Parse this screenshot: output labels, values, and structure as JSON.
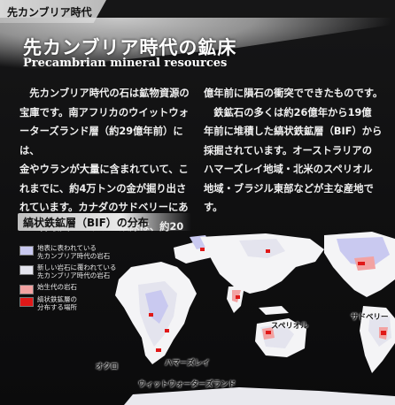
{
  "chapter_tab": "先カンブリア時代",
  "title": "先カンブリア時代の鉱床",
  "subtitle": "Precambrian mineral resources",
  "body_left": "　先カンブリア時代の石は鉱物資源の\n宝庫です。南アフリカのウイットウォ\nーターズランド層（約29億年前）には、\n金やウランが大量に含まれていて、こ\nれまでに、約4万トンの金が掘り出さ\nれています。カナダのサドベリーにあ\nる世界最大のニッケル鉱床は、約20",
  "body_right": "億年前に隕石の衝突でできたものです。\n　鉄鉱石の多くは約26億年から19億\n年前に堆積した縞状鉄鉱層（BIF）から\n採掘されています。オーストラリアの\nハマーズレイ地域・北米のスペリオル\n地域・ブラジル東部などが主な産地です。",
  "section_heading": "縞状鉄鉱層（BIF）の分布",
  "legend": [
    {
      "label": "地表に表われている\n先カンブリア時代の岩石",
      "color": "#c9c9f0"
    },
    {
      "label": "新しい岩石に覆われている\n先カンブリア時代の岩石",
      "color": "#e4e4ee"
    },
    {
      "label": "始生代の岩石",
      "color": "#f2a2a2"
    },
    {
      "label": "縞状鉄鉱層の\n分布する場所",
      "color": "#e01818"
    }
  ],
  "places": {
    "superior": "スペリオル",
    "sudbury": "サドベリー",
    "okuro": "オクロ",
    "hamersley": "ハマーズレイ",
    "witwatersrand": "ウィットウォーターズランド"
  },
  "colors": {
    "land": "#f4f4f6",
    "precambrian_exposed": "#c9c9f0",
    "precambrian_covered": "#e4e4ee",
    "archean": "#f2a2a2",
    "bif": "#e01818"
  }
}
